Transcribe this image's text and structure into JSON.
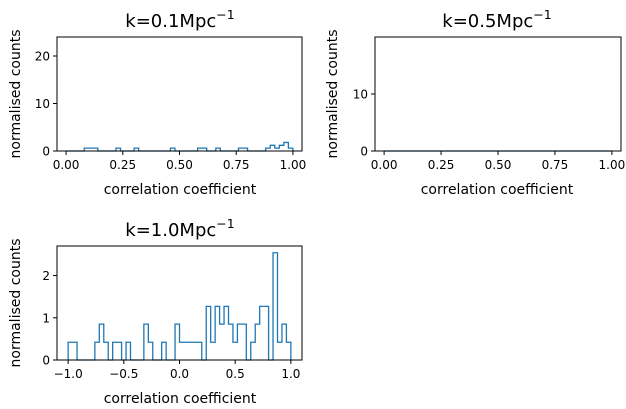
{
  "chart_data": [
    {
      "type": "histogram",
      "title_base": "k=0.1Mpc",
      "title_exp": "−1",
      "xlabel": "correlation coefficient",
      "ylabel": "normalised counts",
      "xlim": [
        -0.04,
        1.04
      ],
      "ylim": [
        0,
        24
      ],
      "xticks": [
        0.0,
        0.25,
        0.5,
        0.75,
        1.0
      ],
      "xtick_labels": [
        "0.00",
        "0.25",
        "0.50",
        "0.75",
        "1.00"
      ],
      "yticks": [
        0,
        10,
        20
      ],
      "ytick_labels": [
        "0",
        "10",
        "20"
      ],
      "bins": {
        "start": 0.0,
        "width": 0.02,
        "count": 50
      },
      "counts": [
        0,
        0,
        0,
        0,
        0.6,
        0.6,
        0.6,
        0,
        0,
        0,
        0,
        0.6,
        0,
        0,
        0,
        0.6,
        0,
        0,
        0,
        0,
        0,
        0,
        0,
        0.6,
        0,
        0,
        0,
        0,
        0,
        0.6,
        0.6,
        0,
        0,
        0.6,
        0,
        0,
        0,
        0,
        0.6,
        0.6,
        0,
        0,
        0,
        0,
        0.6,
        1.2,
        0.6,
        1.2,
        1.8,
        0.6
      ]
    },
    {
      "type": "histogram",
      "title_base": "k=0.5Mpc",
      "title_exp": "−1",
      "xlabel": "correlation coefficient",
      "ylabel": "normalised counts",
      "xlim": [
        -0.04,
        1.04
      ],
      "ylim": [
        0,
        20
      ],
      "xticks": [
        0.0,
        0.25,
        0.5,
        0.75,
        1.0
      ],
      "xtick_labels": [
        "0.00",
        "0.25",
        "0.50",
        "0.75",
        "1.00"
      ],
      "yticks": [
        0,
        10
      ],
      "ytick_labels": [
        "0",
        "10"
      ],
      "bins": {
        "start": 0.0,
        "width": 0.02,
        "count": 50
      },
      "counts": [
        0,
        0,
        0,
        0,
        0,
        0,
        0,
        0,
        0,
        0,
        0,
        0,
        0,
        0,
        0,
        0,
        0,
        0,
        0,
        0,
        0,
        0,
        0,
        0,
        0,
        0,
        0,
        0,
        0,
        0,
        0,
        0,
        0,
        0,
        0,
        0,
        0,
        0,
        0,
        0,
        0,
        0,
        0,
        0,
        0,
        0,
        0,
        0,
        0,
        0
      ]
    },
    {
      "type": "histogram",
      "title_base": "k=1.0Mpc",
      "title_exp": "−1",
      "xlabel": "correlation coefficient",
      "ylabel": "normalised counts",
      "xlim": [
        -1.1,
        1.1
      ],
      "ylim": [
        0,
        2.7
      ],
      "xticks": [
        -1.0,
        -0.5,
        0.0,
        0.5,
        1.0
      ],
      "xtick_labels": [
        "−1.0",
        "−0.5",
        "0.0",
        "0.5",
        "1.0"
      ],
      "yticks": [
        0,
        1,
        2
      ],
      "ytick_labels": [
        "0",
        "1",
        "2"
      ],
      "bins": {
        "start": -1.0,
        "width": 0.04,
        "count": 50
      },
      "counts": [
        0.42,
        0.42,
        0,
        0,
        0,
        0,
        0.42,
        0.85,
        0.42,
        0,
        0.42,
        0.42,
        0,
        0.42,
        0,
        0,
        0,
        0.85,
        0.42,
        0,
        0,
        0.42,
        0,
        0,
        0.85,
        0.42,
        0.42,
        0.42,
        0.42,
        0.42,
        0,
        1.27,
        0.42,
        1.27,
        0.85,
        1.27,
        0.85,
        0.42,
        0.85,
        0.85,
        0,
        0.42,
        0.85,
        1.27,
        1.27,
        0,
        2.54,
        0.42,
        0.85,
        0.42
      ]
    }
  ]
}
